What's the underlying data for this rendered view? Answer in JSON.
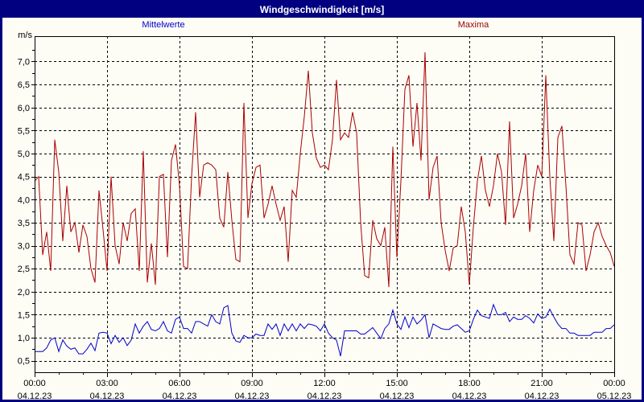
{
  "window": {
    "title": "Windgeschwindigkeit [m/s]"
  },
  "axes": {
    "y_unit_label": "m/s"
  },
  "colors": {
    "titlebar_bg": "#000080",
    "titlebar_text": "#ffffff",
    "window_border": "#000080",
    "grid": "#000000",
    "mean_series": "#0000cc",
    "max_series": "#aa0000",
    "mean_legend_text": "#0000cc",
    "max_legend_text": "#990000"
  },
  "chart_data": {
    "type": "line",
    "title": "Windgeschwindigkeit [m/s]",
    "grid": "dashed",
    "legend_position": "top",
    "x_start_hour": 0,
    "interval_minutes": 10,
    "ylim": [
      0.25,
      7.55
    ],
    "xlim_hours": [
      0,
      24
    ],
    "x_minor_tick_every_hours": 1,
    "x_ticks_major": [
      {
        "hour": 0,
        "time": "00:00",
        "date": "04.12.23"
      },
      {
        "hour": 3,
        "time": "03:00",
        "date": "04.12.23"
      },
      {
        "hour": 6,
        "time": "06:00",
        "date": "04.12.23"
      },
      {
        "hour": 9,
        "time": "09:00",
        "date": "04.12.23"
      },
      {
        "hour": 12,
        "time": "12:00",
        "date": "04.12.23"
      },
      {
        "hour": 15,
        "time": "15:00",
        "date": "04.12.23"
      },
      {
        "hour": 18,
        "time": "18:00",
        "date": "04.12.23"
      },
      {
        "hour": 21,
        "time": "21:00",
        "date": "04.12.23"
      },
      {
        "hour": 24,
        "time": "00:00",
        "date": "05.12.23"
      }
    ],
    "y_ticks": [
      {
        "value": 0.5,
        "label": "0,5"
      },
      {
        "value": 1.0,
        "label": "1,0"
      },
      {
        "value": 1.5,
        "label": "1,5"
      },
      {
        "value": 2.0,
        "label": "2,0"
      },
      {
        "value": 2.5,
        "label": "2,5"
      },
      {
        "value": 3.0,
        "label": "3,0"
      },
      {
        "value": 3.5,
        "label": "3,5"
      },
      {
        "value": 4.0,
        "label": "4,0"
      },
      {
        "value": 4.5,
        "label": "4,5"
      },
      {
        "value": 5.0,
        "label": "5,0"
      },
      {
        "value": 5.5,
        "label": "5,5"
      },
      {
        "value": 6.0,
        "label": "6,0"
      },
      {
        "value": 6.5,
        "label": "6,5"
      },
      {
        "value": 7.0,
        "label": "7,0"
      }
    ],
    "series": [
      {
        "name": "Mittelwerte",
        "color": "#0000cc",
        "values": [
          0.7,
          0.7,
          0.7,
          0.78,
          0.95,
          1.0,
          0.7,
          0.95,
          0.82,
          0.75,
          0.78,
          0.65,
          0.65,
          0.75,
          0.88,
          0.72,
          1.1,
          1.12,
          1.1,
          0.87,
          1.05,
          0.9,
          1.0,
          0.83,
          0.95,
          1.3,
          1.1,
          1.25,
          1.35,
          1.18,
          1.15,
          1.2,
          1.35,
          1.15,
          1.1,
          1.4,
          1.45,
          1.2,
          1.2,
          1.1,
          1.35,
          1.35,
          1.3,
          1.25,
          1.5,
          1.35,
          1.3,
          1.65,
          1.7,
          1.1,
          0.93,
          0.9,
          1.05,
          1.0,
          1.0,
          1.08,
          1.05,
          1.05,
          1.3,
          1.18,
          1.3,
          1.05,
          1.3,
          1.15,
          1.3,
          1.15,
          1.3,
          1.2,
          1.3,
          1.28,
          1.25,
          1.15,
          1.3,
          1.1,
          1.0,
          0.95,
          0.6,
          1.15,
          1.15,
          1.15,
          1.15,
          1.08,
          1.08,
          1.15,
          1.22,
          1.1,
          0.98,
          1.2,
          1.3,
          1.6,
          1.3,
          1.18,
          1.45,
          1.22,
          1.45,
          1.3,
          1.38,
          1.5,
          1.0,
          1.3,
          1.25,
          1.2,
          1.18,
          1.18,
          1.25,
          1.28,
          1.2,
          1.12,
          1.15,
          1.4,
          1.6,
          1.48,
          1.45,
          1.42,
          1.72,
          1.5,
          1.5,
          1.55,
          1.35,
          1.45,
          1.4,
          1.4,
          1.48,
          1.42,
          1.32,
          1.52,
          1.42,
          1.45,
          1.62,
          1.45,
          1.3,
          1.2,
          1.2,
          1.1,
          1.1,
          1.05,
          1.05,
          1.05,
          1.05,
          1.12,
          1.12,
          1.12,
          1.2,
          1.2,
          1.28
        ]
      },
      {
        "name": "Maxima",
        "color": "#aa0000",
        "values": [
          4.4,
          4.5,
          2.8,
          3.3,
          2.45,
          5.3,
          4.6,
          3.1,
          4.3,
          3.3,
          3.5,
          2.85,
          3.45,
          3.2,
          2.5,
          2.2,
          4.2,
          3.35,
          2.45,
          4.5,
          3.0,
          2.6,
          3.5,
          3.1,
          3.7,
          3.8,
          2.45,
          5.05,
          2.2,
          3.05,
          2.15,
          4.5,
          4.55,
          2.75,
          4.85,
          5.2,
          4.3,
          2.55,
          2.5,
          4.5,
          5.9,
          4.05,
          4.75,
          4.8,
          4.75,
          4.65,
          3.6,
          3.4,
          4.6,
          3.55,
          2.7,
          2.65,
          6.1,
          3.6,
          4.35,
          4.7,
          4.75,
          3.6,
          3.9,
          4.3,
          3.9,
          3.55,
          3.85,
          2.65,
          4.2,
          4.05,
          5.0,
          5.8,
          6.8,
          5.45,
          4.9,
          4.7,
          4.75,
          4.65,
          5.3,
          6.6,
          5.3,
          5.45,
          5.35,
          5.9,
          5.45,
          3.5,
          2.35,
          2.3,
          3.55,
          3.15,
          3.0,
          3.4,
          2.1,
          5.15,
          2.75,
          4.4,
          6.4,
          6.7,
          5.15,
          6.1,
          4.85,
          7.2,
          4.0,
          4.7,
          4.95,
          3.5,
          2.9,
          2.45,
          2.95,
          3.0,
          3.85,
          3.3,
          2.15,
          3.4,
          4.4,
          4.95,
          4.2,
          3.85,
          4.3,
          5.0,
          4.6,
          3.45,
          5.7,
          3.6,
          3.9,
          4.3,
          5.0,
          3.3,
          4.2,
          4.75,
          4.5,
          6.7,
          4.5,
          3.1,
          5.35,
          5.6,
          4.3,
          2.8,
          2.6,
          3.5,
          3.45,
          2.45,
          2.8,
          3.3,
          3.5,
          3.2,
          3.0,
          2.85,
          2.55
        ]
      }
    ]
  }
}
